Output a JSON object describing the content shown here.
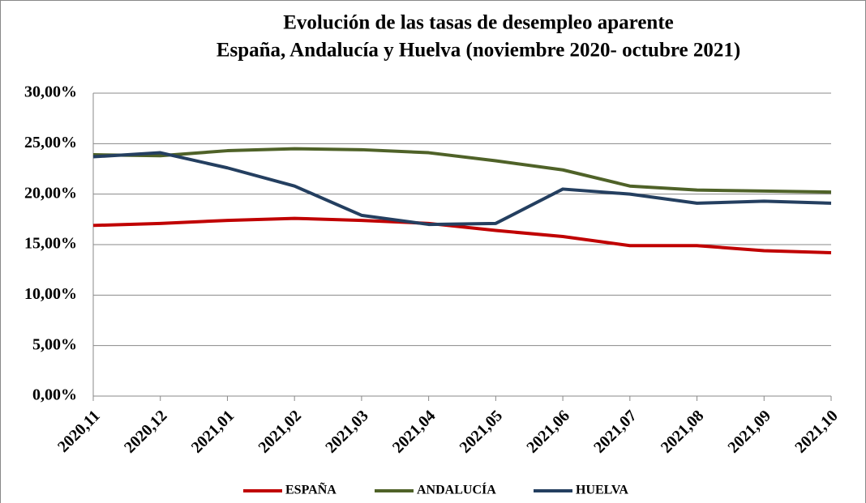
{
  "chart_data": {
    "type": "line",
    "title": "Evolución de las tasas de desempleo aparente",
    "subtitle": "España, Andalucía y Huelva (noviembre 2020- octubre 2021)",
    "categories": [
      "2020,11",
      "2020,12",
      "2021,01",
      "2021,02",
      "2021,03",
      "2021,04",
      "2021,05",
      "2021,06",
      "2021,07",
      "2021,08",
      "2021,09",
      "2021,10"
    ],
    "series": [
      {
        "name": "ESPAÑA",
        "color": "#c00000",
        "values": [
          16.9,
          17.1,
          17.4,
          17.6,
          17.4,
          17.1,
          16.4,
          15.8,
          14.9,
          14.9,
          14.4,
          14.2
        ]
      },
      {
        "name": "ANDALUCÍA",
        "color": "#4f6228",
        "values": [
          23.9,
          23.8,
          24.3,
          24.5,
          24.4,
          24.1,
          23.3,
          22.4,
          20.8,
          20.4,
          20.3,
          20.2
        ]
      },
      {
        "name": "HUELVA",
        "color": "#243f60",
        "values": [
          23.7,
          24.1,
          22.6,
          20.8,
          17.9,
          17.0,
          17.1,
          20.5,
          20.0,
          19.1,
          19.3,
          19.1
        ]
      }
    ],
    "ylim": [
      0,
      30
    ],
    "yticks": [
      {
        "value": 0,
        "label": "0,00%"
      },
      {
        "value": 5,
        "label": "5,00%"
      },
      {
        "value": 10,
        "label": "10,00%"
      },
      {
        "value": 15,
        "label": "15,00%"
      },
      {
        "value": 20,
        "label": "20,00%"
      },
      {
        "value": 25,
        "label": "25,00%"
      },
      {
        "value": 30,
        "label": "30,00%"
      }
    ],
    "grid": true,
    "legend": "bottom"
  }
}
